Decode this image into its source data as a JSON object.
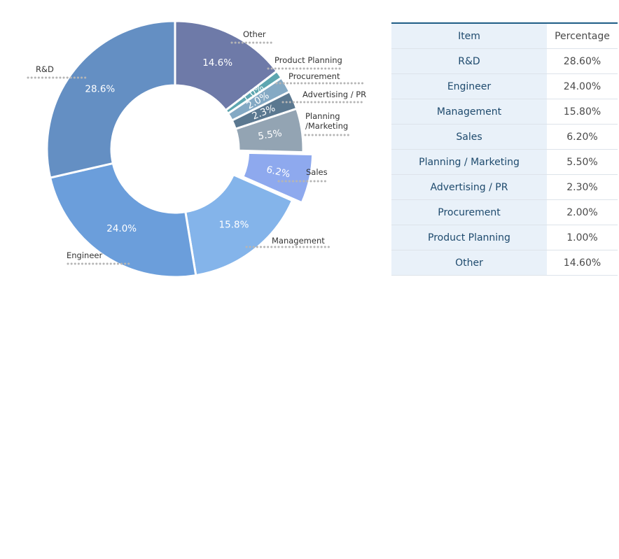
{
  "chart_data": {
    "type": "pie",
    "donut": true,
    "slices": [
      {
        "label": "Other",
        "value": 14.6,
        "display": "14.6%",
        "color": "#6e7aa8"
      },
      {
        "label": "Product Planning",
        "value": 1.0,
        "display": "1.0%",
        "color": "#5ea6b0"
      },
      {
        "label": "Procurement",
        "value": 2.0,
        "display": "2.0%",
        "color": "#84a9c4"
      },
      {
        "label": "Advertising / PR",
        "value": 2.3,
        "display": "2.3%",
        "color": "#5b7890"
      },
      {
        "label": "Planning\n/Marketing",
        "value": 5.5,
        "display": "5.5%",
        "color": "#93a4b3"
      },
      {
        "label": "Sales",
        "value": 6.2,
        "display": "6.2%",
        "color": "#8ea9ee"
      },
      {
        "label": "Management",
        "value": 15.8,
        "display": "15.8%",
        "color": "#84b4ea"
      },
      {
        "label": "Engineer",
        "value": 24.0,
        "display": "24.0%",
        "color": "#6b9edb"
      },
      {
        "label": "R&D",
        "value": 28.6,
        "display": "28.6%",
        "color": "#648fc3"
      }
    ]
  },
  "table": {
    "headers": {
      "item": "Item",
      "percentage": "Percentage"
    },
    "rows": [
      {
        "item": "R&D",
        "percentage": "28.60%"
      },
      {
        "item": "Engineer",
        "percentage": "24.00%"
      },
      {
        "item": "Management",
        "percentage": "15.80%"
      },
      {
        "item": "Sales",
        "percentage": "6.20%"
      },
      {
        "item": "Planning / Marketing",
        "percentage": "5.50%"
      },
      {
        "item": "Advertising / PR",
        "percentage": "2.30%"
      },
      {
        "item": "Procurement",
        "percentage": "2.00%"
      },
      {
        "item": "Product Planning",
        "percentage": "1.00%"
      },
      {
        "item": "Other",
        "percentage": "14.60%"
      }
    ]
  }
}
